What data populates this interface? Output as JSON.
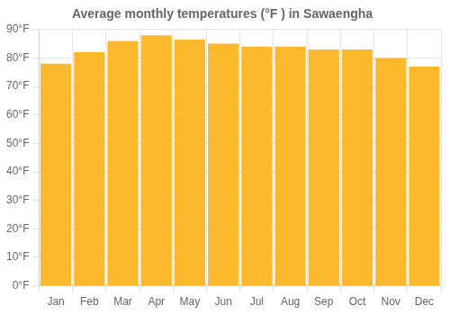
{
  "chart_data": {
    "type": "bar",
    "title": "Average monthly temperatures (°F ) in Sawaengha",
    "categories": [
      "Jan",
      "Feb",
      "Mar",
      "Apr",
      "May",
      "Jun",
      "Jul",
      "Aug",
      "Sep",
      "Oct",
      "Nov",
      "Dec"
    ],
    "values": [
      78,
      82,
      86,
      88,
      86.5,
      85,
      84,
      84,
      83,
      83,
      80,
      77
    ],
    "color": "#FDB92E",
    "ylim": [
      0,
      90
    ],
    "yticks": [
      {
        "value": 0,
        "label": "0°F"
      },
      {
        "value": 10,
        "label": "10°F"
      },
      {
        "value": 20,
        "label": "20°F"
      },
      {
        "value": 30,
        "label": "30°F"
      },
      {
        "value": 40,
        "label": "40°F"
      },
      {
        "value": 50,
        "label": "50°F"
      },
      {
        "value": 60,
        "label": "60°F"
      },
      {
        "value": 70,
        "label": "70°F"
      },
      {
        "value": 80,
        "label": "80°F"
      },
      {
        "value": 90,
        "label": "90°F"
      }
    ],
    "grid": true
  }
}
